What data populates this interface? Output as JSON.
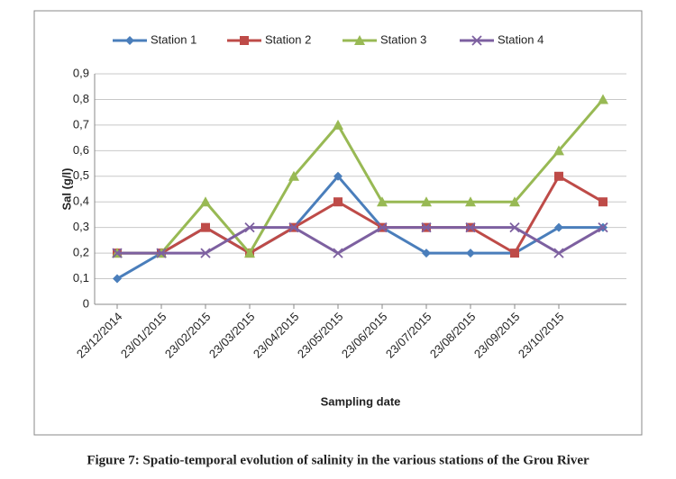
{
  "chart_data": {
    "type": "line",
    "y_label": "Sal (g/l)",
    "x_label": "Sampling date",
    "caption": "Figure 7: Spatio-temporal evolution of salinity in the various stations of the Grou River",
    "categories": [
      "23/12/2014",
      "23/01/2015",
      "23/02/2015",
      "23/03/2015",
      "23/04/2015",
      "23/05/2015",
      "23/06/2015",
      "23/07/2015",
      "23/08/2015",
      "23/09/2015",
      "23/10/2015",
      null
    ],
    "series": [
      {
        "name": "Station 1",
        "color": "#4a7ebb",
        "marker": "diamond",
        "values": [
          0.1,
          0.2,
          0.3,
          0.2,
          0.3,
          0.5,
          0.3,
          0.2,
          0.2,
          0.2,
          0.3,
          0.3
        ]
      },
      {
        "name": "Station 2",
        "color": "#be4b48",
        "marker": "square",
        "values": [
          0.2,
          0.2,
          0.3,
          0.2,
          0.3,
          0.4,
          0.3,
          0.3,
          0.3,
          0.2,
          0.5,
          0.4
        ]
      },
      {
        "name": "Station 3",
        "color": "#98b954",
        "marker": "triangle",
        "values": [
          0.2,
          0.2,
          0.4,
          0.2,
          0.5,
          0.7,
          0.4,
          0.4,
          0.4,
          0.4,
          0.6,
          0.8
        ]
      },
      {
        "name": "Station 4",
        "color": "#7d60a0",
        "marker": "x",
        "values": [
          0.2,
          0.2,
          0.2,
          0.3,
          0.3,
          0.2,
          0.3,
          0.3,
          0.3,
          0.3,
          0.2,
          0.3
        ]
      }
    ],
    "ylim": [
      0,
      0.9
    ],
    "yticks": [
      0,
      {
        "value": 0.1,
        "label": "0,1"
      },
      {
        "value": 0.2,
        "label": "0,2"
      },
      {
        "value": 0.3,
        "label": "0,3"
      },
      {
        "value": 0.4,
        "label": "0,4"
      },
      {
        "value": 0.5,
        "label": "0,5"
      },
      {
        "value": 0.6,
        "label": "0,6"
      },
      {
        "value": 0.7,
        "label": "0,7"
      },
      {
        "value": 0.8,
        "label": "0,8"
      },
      {
        "value": 0.9,
        "label": "0,9"
      }
    ],
    "grid": true,
    "legend": "top"
  }
}
